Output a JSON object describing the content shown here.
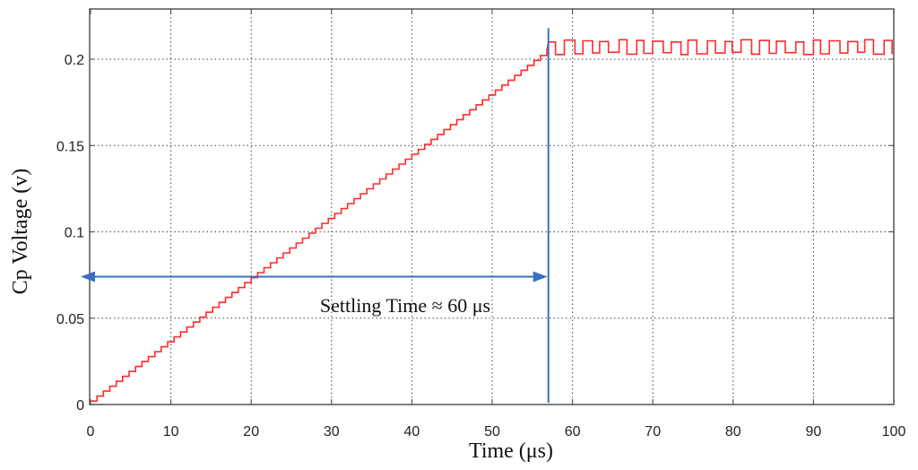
{
  "chart_data": {
    "type": "line",
    "xlabel": "Time (μs)",
    "ylabel": "Cp Voltage (v)",
    "xlim": [
      0,
      100
    ],
    "ylim": [
      0,
      0.22
    ],
    "xticks": [
      0,
      10,
      20,
      30,
      40,
      50,
      60,
      70,
      80,
      90,
      100
    ],
    "xtick_labels": [
      "0",
      "10",
      "20",
      "30",
      "40",
      "50",
      "60",
      "70",
      "80",
      "90",
      "100"
    ],
    "yticks": [
      0,
      0.05,
      0.1,
      0.15,
      0.2
    ],
    "ytick_labels": [
      "0",
      "0.05",
      "0.1",
      "0.15",
      "0.2"
    ],
    "grid": true,
    "series": [
      {
        "color": "#ff2a2a",
        "ramp": {
          "x_start": 0,
          "x_end": 57,
          "y_start": 0.002,
          "y_end": 0.205,
          "step_us": 0.8
        },
        "steady": {
          "x_start": 57,
          "x_end": 100,
          "low": 0.204,
          "high": 0.21,
          "period_us": 2.2
        }
      }
    ],
    "annotations": {
      "settling_time_label": "Settling Time  ≈ 60 μs",
      "settling_x": 57,
      "arrow_y": 0.074,
      "vline_top": 0.218,
      "marker_color": "#3a6fc4"
    }
  }
}
